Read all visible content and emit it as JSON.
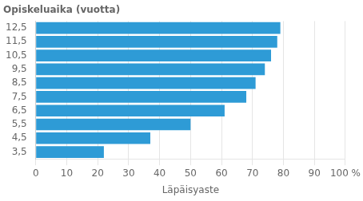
{
  "chart_data": {
    "type": "bar",
    "orientation": "horizontal",
    "title": "Opiskeluaika (vuotta)",
    "xlabel": "Läpäisyaste",
    "categories": [
      "3,5",
      "4,5",
      "5,5",
      "6,5",
      "7,5",
      "8,5",
      "9,5",
      "10,5",
      "11,5",
      "12,5"
    ],
    "values": [
      22,
      37,
      50,
      61,
      68,
      71,
      74,
      76,
      78,
      79
    ],
    "color": "#2E9BD6",
    "xlim": [
      0,
      100
    ],
    "xticks": [
      0,
      10,
      20,
      30,
      40,
      50,
      60,
      70,
      80,
      90,
      {
        "value": 100,
        "label": "100 %"
      }
    ],
    "grid": true
  }
}
